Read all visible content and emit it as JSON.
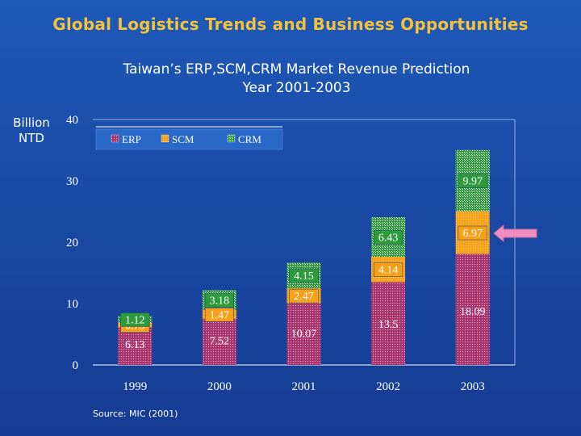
{
  "slide_title": "Global Logistics Trends and Business Opportunities",
  "chart_subtitle_line1": "Taiwan’s ERP,SCM,CRM Market Revenue Prediction",
  "chart_subtitle_line2": "Year 2001-2003",
  "y_unit_line1": "Billion",
  "y_unit_line2": "NTD",
  "source": "Source: MIC (2001)",
  "colors": {
    "background": "#1a4aa6",
    "title": "#f3c23a",
    "erp": "#a8356e",
    "scm": "#f6a11a",
    "crm": "#2f9a3c",
    "arrow": "#f08cc0"
  },
  "chart_data": {
    "type": "bar",
    "stacked": true,
    "categories": [
      "1999",
      "2000",
      "2001",
      "2002",
      "2003"
    ],
    "series": [
      {
        "name": "ERP",
        "values": [
          6.13,
          7.52,
          10.07,
          13.5,
          18.09
        ],
        "labels": [
          "6.13",
          "7.52",
          "10.07",
          "13.5",
          "18.09"
        ]
      },
      {
        "name": "SCM",
        "values": [
          0.75,
          1.47,
          2.47,
          4.14,
          6.97
        ],
        "labels": [
          "0.75",
          "1.47",
          "2.47",
          "4.14",
          "6.97"
        ]
      },
      {
        "name": "CRM",
        "values": [
          1.12,
          3.18,
          4.15,
          6.43,
          9.97
        ],
        "labels": [
          "1.12",
          "3.18",
          "4.15",
          "6.43",
          "9.97"
        ]
      }
    ],
    "yticks": [
      "0",
      "10",
      "20",
      "30",
      "40"
    ],
    "ylim": [
      0,
      40
    ],
    "legend_position": "top-left",
    "highlight": "arrow pointing to 2003 SCM value"
  }
}
